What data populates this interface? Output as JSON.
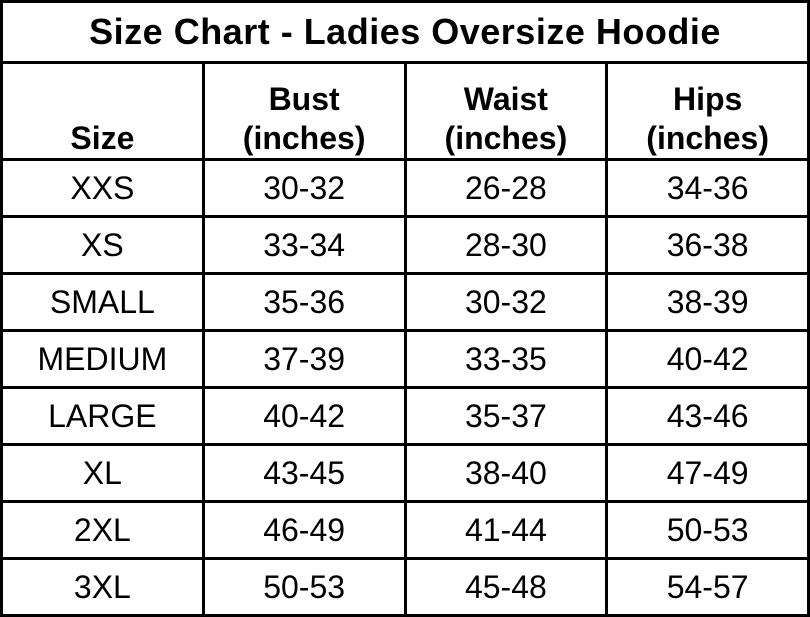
{
  "title": "Size Chart - Ladies Oversize Hoodie",
  "colors": {
    "background": "#ffffff",
    "border": "#000000",
    "text": "#000000"
  },
  "chart_data": {
    "type": "table",
    "title": "Size Chart - Ladies Oversize Hoodie",
    "columns": [
      "Size",
      "Bust (inches)",
      "Waist (inches)",
      "Hips (inches)"
    ],
    "rows": [
      [
        "XXS",
        "30-32",
        "26-28",
        "34-36"
      ],
      [
        "XS",
        "33-34",
        "28-30",
        "36-38"
      ],
      [
        "SMALL",
        "35-36",
        "30-32",
        "38-39"
      ],
      [
        "MEDIUM",
        "37-39",
        "33-35",
        "40-42"
      ],
      [
        "LARGE",
        "40-42",
        "35-37",
        "43-46"
      ],
      [
        "XL",
        "43-45",
        "38-40",
        "47-49"
      ],
      [
        "2XL",
        "46-49",
        "41-44",
        "50-53"
      ],
      [
        "3XL",
        "50-53",
        "45-48",
        "54-57"
      ]
    ]
  }
}
